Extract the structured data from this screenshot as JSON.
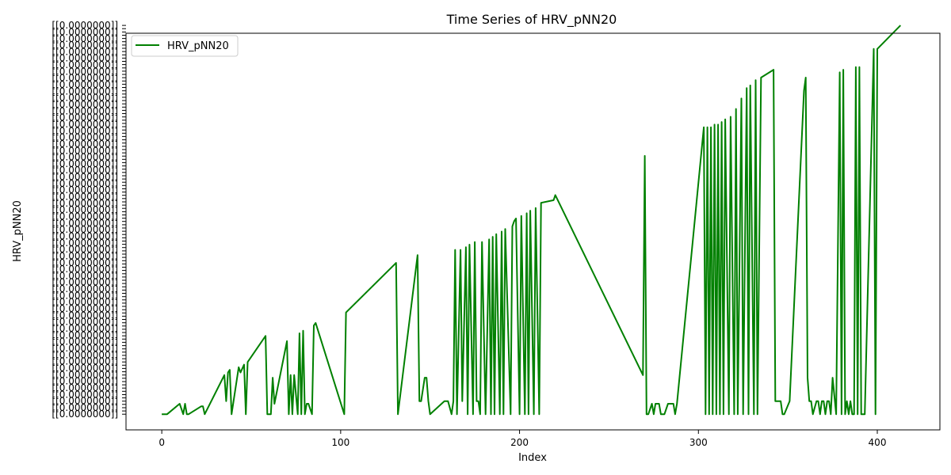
{
  "chart_data": {
    "type": "line",
    "title": "Time Series of HRV_pNN20",
    "xlabel": "Index",
    "ylabel": "HRV_pNN20",
    "xlim": [
      -20,
      435
    ],
    "xticks": [
      0,
      100,
      200,
      300,
      400
    ],
    "ylim": [
      -6,
      146
    ],
    "grid": false,
    "legend": {
      "placement": "top-left",
      "entries": [
        "HRV_pNN20"
      ]
    },
    "y_categories_note": "y axis is categorical: tick labels are overlapping strings of the form [[0.xxxx]] and are not legible",
    "series": [
      {
        "name": "HRV_pNN20",
        "color": "#008000",
        "x": [
          0,
          3,
          10,
          12,
          13,
          14,
          15,
          22,
          23,
          24,
          35,
          36,
          37,
          38,
          39,
          43,
          44,
          46,
          47,
          48,
          58,
          59,
          61,
          62,
          63,
          70,
          71,
          72,
          73,
          74,
          76,
          77,
          78,
          79,
          80,
          81,
          82,
          84,
          85,
          86,
          102,
          103,
          131,
          132,
          143,
          144,
          145,
          147,
          148,
          149,
          150,
          158,
          160,
          162,
          163,
          164,
          165,
          167,
          168,
          170,
          171,
          172,
          174,
          175,
          176,
          177,
          178,
          179,
          181,
          183,
          184,
          185,
          186,
          187,
          189,
          190,
          191,
          192,
          195,
          196,
          197,
          198,
          200,
          201,
          203,
          204,
          205,
          206,
          208,
          209,
          211,
          212,
          219,
          220,
          269,
          270,
          271,
          272,
          274,
          275,
          276,
          278,
          279,
          280,
          281,
          283,
          284,
          286,
          287,
          288,
          303,
          304,
          305,
          306,
          307,
          308,
          309,
          310,
          311,
          312,
          313,
          314,
          315,
          317,
          318,
          320,
          321,
          322,
          324,
          325,
          327,
          328,
          329,
          331,
          332,
          333,
          335,
          342,
          343,
          344,
          346,
          347,
          348,
          351,
          359,
          360,
          361,
          362,
          363,
          364,
          366,
          367,
          368,
          369,
          370,
          371,
          372,
          373,
          374,
          375,
          377,
          379,
          380,
          381,
          382,
          383,
          384,
          385,
          386,
          387,
          388,
          389,
          390,
          391,
          393,
          398,
          399,
          400,
          413
        ],
        "y": [
          0,
          0,
          4,
          0,
          4,
          0,
          0,
          3,
          3,
          0,
          15,
          5,
          16,
          17,
          0,
          18,
          16,
          19,
          0,
          20,
          30,
          0,
          0,
          14,
          4,
          28,
          0,
          15,
          0,
          15,
          0,
          31,
          0,
          32,
          0,
          4,
          4,
          0,
          34,
          35,
          0,
          39,
          58,
          0,
          61,
          5,
          5,
          14,
          14,
          5,
          0,
          5,
          5,
          0,
          5,
          63,
          0,
          63,
          5,
          64,
          0,
          65,
          0,
          66,
          5,
          5,
          0,
          66,
          0,
          67,
          0,
          68,
          0,
          69,
          0,
          70,
          0,
          71,
          0,
          72,
          74,
          75,
          0,
          76,
          0,
          77,
          0,
          78,
          0,
          79,
          0,
          81,
          82,
          84,
          15,
          99,
          0,
          0,
          4,
          0,
          4,
          4,
          0,
          0,
          0,
          4,
          4,
          4,
          0,
          4,
          110,
          0,
          110,
          0,
          110,
          0,
          111,
          0,
          111,
          0,
          112,
          0,
          113,
          0,
          114,
          0,
          117,
          0,
          121,
          0,
          125,
          0,
          126,
          0,
          128,
          0,
          129,
          132,
          5,
          5,
          5,
          0,
          0,
          5,
          124,
          129,
          14,
          5,
          5,
          0,
          5,
          5,
          0,
          5,
          5,
          0,
          5,
          5,
          0,
          14,
          0,
          131,
          0,
          132,
          0,
          5,
          0,
          5,
          0,
          0,
          133,
          0,
          133,
          0,
          0,
          140,
          0,
          140,
          149
        ]
      }
    ]
  }
}
